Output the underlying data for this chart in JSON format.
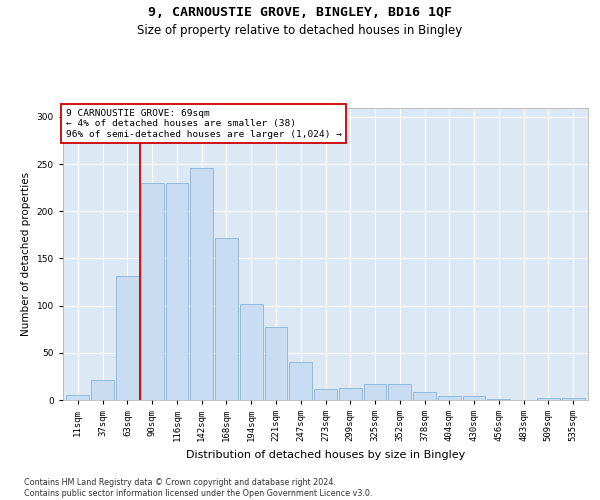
{
  "title1": "9, CARNOUSTIE GROVE, BINGLEY, BD16 1QF",
  "title2": "Size of property relative to detached houses in Bingley",
  "xlabel": "Distribution of detached houses by size in Bingley",
  "ylabel": "Number of detached properties",
  "categories": [
    "11sqm",
    "37sqm",
    "63sqm",
    "90sqm",
    "116sqm",
    "142sqm",
    "168sqm",
    "194sqm",
    "221sqm",
    "247sqm",
    "273sqm",
    "299sqm",
    "325sqm",
    "352sqm",
    "378sqm",
    "404sqm",
    "430sqm",
    "456sqm",
    "483sqm",
    "509sqm",
    "535sqm"
  ],
  "values": [
    5,
    21,
    131,
    230,
    230,
    246,
    172,
    102,
    77,
    40,
    12,
    13,
    17,
    17,
    9,
    4,
    4,
    1,
    0,
    2,
    2
  ],
  "bar_color": "#c9ddf2",
  "bar_edge_color": "#8ab4d8",
  "vline_x": 2.5,
  "vline_color": "#cc0000",
  "annotation_text": "9 CARNOUSTIE GROVE: 69sqm\n← 4% of detached houses are smaller (38)\n96% of semi-detached houses are larger (1,024) →",
  "annotation_box_color": "#ffffff",
  "annotation_box_edge": "#cc0000",
  "footnote": "Contains HM Land Registry data © Crown copyright and database right 2024.\nContains public sector information licensed under the Open Government Licence v3.0.",
  "ylim": [
    0,
    310
  ],
  "yticks": [
    0,
    50,
    100,
    150,
    200,
    250,
    300
  ],
  "plot_bg_color": "#dce9f5",
  "title1_fontsize": 9.5,
  "title2_fontsize": 8.5,
  "xlabel_fontsize": 8,
  "ylabel_fontsize": 7.5,
  "tick_fontsize": 6.5,
  "annot_fontsize": 6.8,
  "footnote_fontsize": 5.8
}
